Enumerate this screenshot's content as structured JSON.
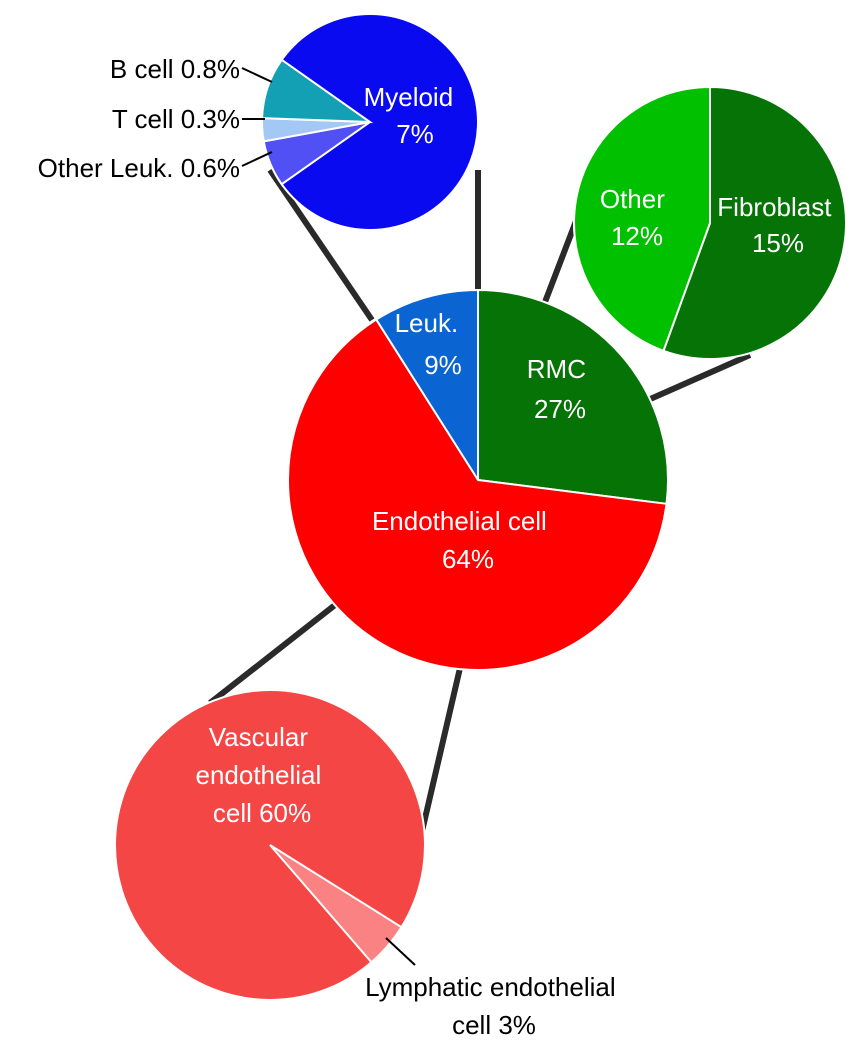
{
  "chart_data": [
    {
      "type": "pie",
      "role": "main",
      "color": "#ff0000",
      "slices": [
        {
          "label": "Leuk.",
          "value": 9,
          "text": "9%",
          "color": "#0a64d2"
        },
        {
          "label": "RMC",
          "value": 27,
          "text": "27%",
          "color": "#067306"
        },
        {
          "label": "Endothelial cell",
          "value": 64,
          "text": "64%",
          "color": "#ff0000"
        }
      ]
    },
    {
      "type": "pie",
      "role": "detail-leuk",
      "slices": [
        {
          "label": "Myeloid",
          "value": 7,
          "text": "7%",
          "color": "#0a0af0"
        },
        {
          "label": "Other Leuk.",
          "value": 0.6,
          "text": "0.6%",
          "color": "#5050f5"
        },
        {
          "label": "T cell",
          "value": 0.3,
          "text": "0.3%",
          "color": "#a4c8f5"
        },
        {
          "label": "B cell",
          "value": 0.8,
          "text": "0.8%",
          "color": "#14a0b4"
        }
      ],
      "labels": {
        "myeloid": [
          "Myeloid",
          "7%"
        ],
        "b_cell": "B cell 0.8%",
        "t_cell": "T cell 0.3%",
        "other_leuk": "Other Leuk. 0.6%"
      }
    },
    {
      "type": "pie",
      "role": "detail-rmc",
      "slices": [
        {
          "label": "Fibroblast",
          "value": 15,
          "text": "15%",
          "color": "#067306"
        },
        {
          "label": "Other",
          "value": 12,
          "text": "12%",
          "color": "#00c000"
        }
      ]
    },
    {
      "type": "pie",
      "role": "detail-endothelial",
      "slices": [
        {
          "label": "Vascular endothelial cell",
          "value": 60,
          "text": "60%",
          "color": "#f54646"
        },
        {
          "label": "Lymphatic endothelial cell",
          "value": 3,
          "text": "3%",
          "color": "#fa8282"
        }
      ],
      "labels": {
        "vascular": [
          "Vascular",
          "endothelial",
          "cell 60%"
        ],
        "lymphatic": [
          "Lymphatic endothelial",
          "cell 3%"
        ]
      }
    }
  ],
  "labels": {
    "leuk": [
      "Leuk.",
      "9%"
    ],
    "rmc": [
      "RMC",
      "27%"
    ],
    "endothelial": [
      "Endothelial cell",
      "64%"
    ],
    "other": [
      "Other",
      "12%"
    ],
    "fibroblast": [
      "Fibroblast",
      "15%"
    ]
  }
}
